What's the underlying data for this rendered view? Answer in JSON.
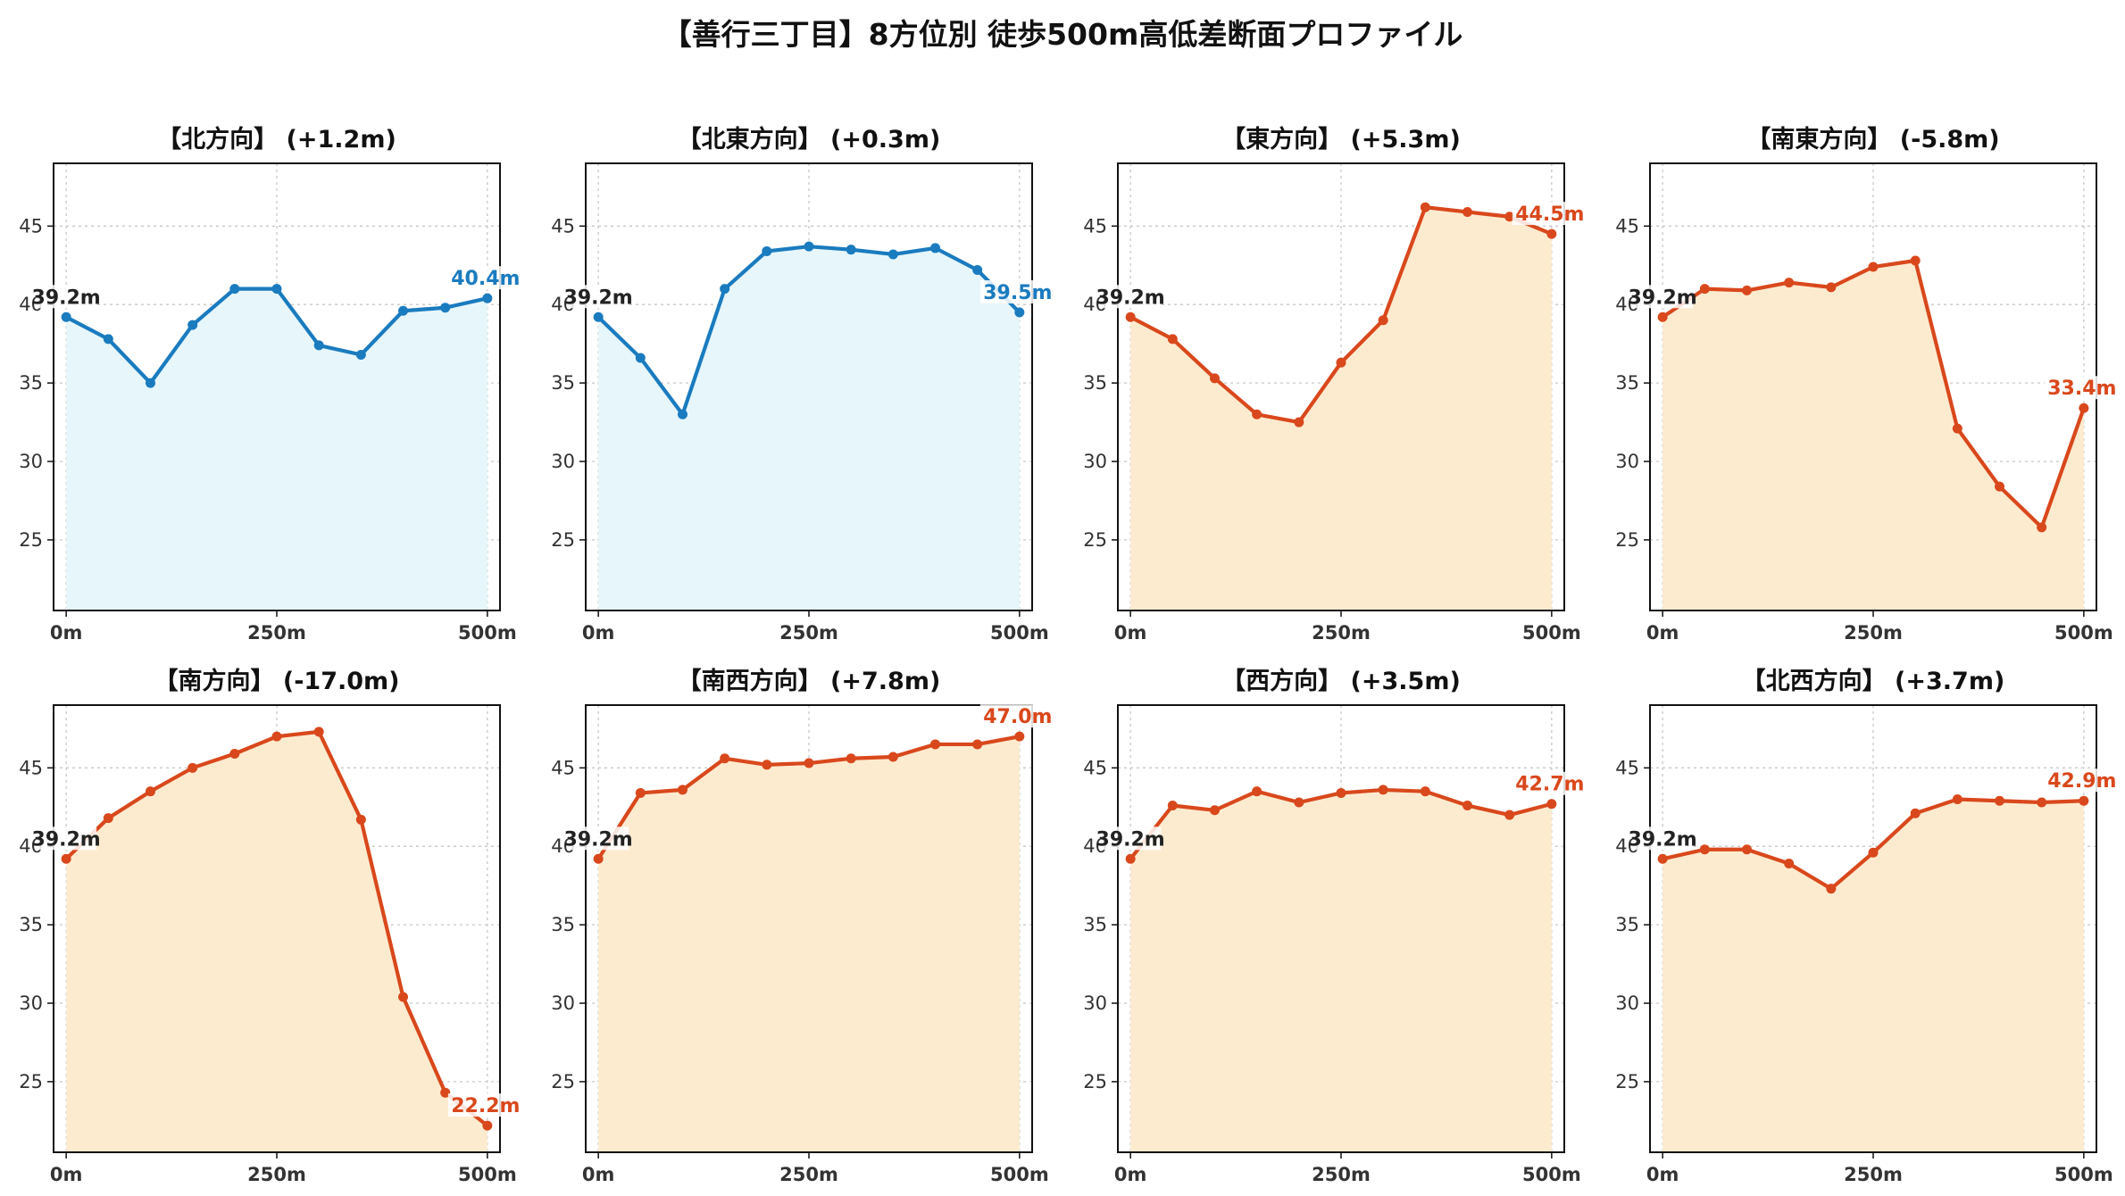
{
  "title": "【善行三丁目】8方位別 徒歩500m高低差断面プロファイル",
  "colors": {
    "up_line": "#1a7bbf",
    "up_fill": "#e6f6fb",
    "down_line": "#d9481c",
    "down_fill": "#fdebd0",
    "grid": "#c8c8c8"
  },
  "chart_data": [
    {
      "type": "area",
      "title": "【北方向】 (+1.2m)",
      "trend": "up",
      "x": [
        0,
        50,
        100,
        150,
        200,
        250,
        300,
        350,
        400,
        450,
        500
      ],
      "y": [
        39.2,
        37.8,
        35.0,
        38.7,
        41.0,
        41.0,
        37.4,
        36.8,
        39.6,
        39.8,
        40.4
      ],
      "start_label": "39.2m",
      "end_label": "40.4m",
      "xticks": [
        "0m",
        "250m",
        "500m"
      ],
      "yticks": [
        25,
        30,
        35,
        40,
        45
      ],
      "ylim": [
        20.5,
        49
      ],
      "grid": true
    },
    {
      "type": "area",
      "title": "【北東方向】 (+0.3m)",
      "trend": "up",
      "x": [
        0,
        50,
        100,
        150,
        200,
        250,
        300,
        350,
        400,
        450,
        500
      ],
      "y": [
        39.2,
        36.6,
        33.0,
        41.0,
        43.4,
        43.7,
        43.5,
        43.2,
        43.6,
        42.2,
        39.5
      ],
      "start_label": "39.2m",
      "end_label": "39.5m",
      "xticks": [
        "0m",
        "250m",
        "500m"
      ],
      "yticks": [
        25,
        30,
        35,
        40,
        45
      ],
      "ylim": [
        20.5,
        49
      ],
      "grid": true
    },
    {
      "type": "area",
      "title": "【東方向】 (+5.3m)",
      "trend": "down",
      "x": [
        0,
        50,
        100,
        150,
        200,
        250,
        300,
        350,
        400,
        450,
        500
      ],
      "y": [
        39.2,
        37.8,
        35.3,
        33.0,
        32.5,
        36.3,
        39.0,
        46.2,
        45.9,
        45.6,
        44.5
      ],
      "start_label": "39.2m",
      "end_label": "44.5m",
      "xticks": [
        "0m",
        "250m",
        "500m"
      ],
      "yticks": [
        25,
        30,
        35,
        40,
        45
      ],
      "ylim": [
        20.5,
        49
      ],
      "grid": true
    },
    {
      "type": "area",
      "title": "【南東方向】 (-5.8m)",
      "trend": "down",
      "x": [
        0,
        50,
        100,
        150,
        200,
        250,
        300,
        350,
        400,
        450,
        500
      ],
      "y": [
        39.2,
        41.0,
        40.9,
        41.4,
        41.1,
        42.4,
        42.8,
        32.1,
        28.4,
        25.8,
        33.4
      ],
      "start_label": "39.2m",
      "end_label": "33.4m",
      "xticks": [
        "0m",
        "250m",
        "500m"
      ],
      "yticks": [
        25,
        30,
        35,
        40,
        45
      ],
      "ylim": [
        20.5,
        49
      ],
      "grid": true
    },
    {
      "type": "area",
      "title": "【南方向】 (-17.0m)",
      "trend": "down",
      "x": [
        0,
        50,
        100,
        150,
        200,
        250,
        300,
        350,
        400,
        450,
        500
      ],
      "y": [
        39.2,
        41.8,
        43.5,
        45.0,
        45.9,
        47.0,
        47.3,
        41.7,
        30.4,
        24.3,
        22.2
      ],
      "start_label": "39.2m",
      "end_label": "22.2m",
      "xticks": [
        "0m",
        "250m",
        "500m"
      ],
      "yticks": [
        25,
        30,
        35,
        40,
        45
      ],
      "ylim": [
        20.5,
        49
      ],
      "grid": true
    },
    {
      "type": "area",
      "title": "【南西方向】 (+7.8m)",
      "trend": "down",
      "x": [
        0,
        50,
        100,
        150,
        200,
        250,
        300,
        350,
        400,
        450,
        500
      ],
      "y": [
        39.2,
        43.4,
        43.6,
        45.6,
        45.2,
        45.3,
        45.6,
        45.7,
        46.5,
        46.5,
        47.0
      ],
      "start_label": "39.2m",
      "end_label": "47.0m",
      "xticks": [
        "0m",
        "250m",
        "500m"
      ],
      "yticks": [
        25,
        30,
        35,
        40,
        45
      ],
      "ylim": [
        20.5,
        49
      ],
      "grid": true
    },
    {
      "type": "area",
      "title": "【西方向】 (+3.5m)",
      "trend": "down",
      "x": [
        0,
        50,
        100,
        150,
        200,
        250,
        300,
        350,
        400,
        450,
        500
      ],
      "y": [
        39.2,
        42.6,
        42.3,
        43.5,
        42.8,
        43.4,
        43.6,
        43.5,
        42.6,
        42.0,
        42.7
      ],
      "start_label": "39.2m",
      "end_label": "42.7m",
      "xticks": [
        "0m",
        "250m",
        "500m"
      ],
      "yticks": [
        25,
        30,
        35,
        40,
        45
      ],
      "ylim": [
        20.5,
        49
      ],
      "grid": true
    },
    {
      "type": "area",
      "title": "【北西方向】 (+3.7m)",
      "trend": "down",
      "x": [
        0,
        50,
        100,
        150,
        200,
        250,
        300,
        350,
        400,
        450,
        500
      ],
      "y": [
        39.2,
        39.8,
        39.8,
        38.9,
        37.3,
        39.6,
        42.1,
        43.0,
        42.9,
        42.8,
        42.9
      ],
      "start_label": "39.2m",
      "end_label": "42.9m",
      "xticks": [
        "0m",
        "250m",
        "500m"
      ],
      "yticks": [
        25,
        30,
        35,
        40,
        45
      ],
      "ylim": [
        20.5,
        49
      ],
      "grid": true
    }
  ]
}
